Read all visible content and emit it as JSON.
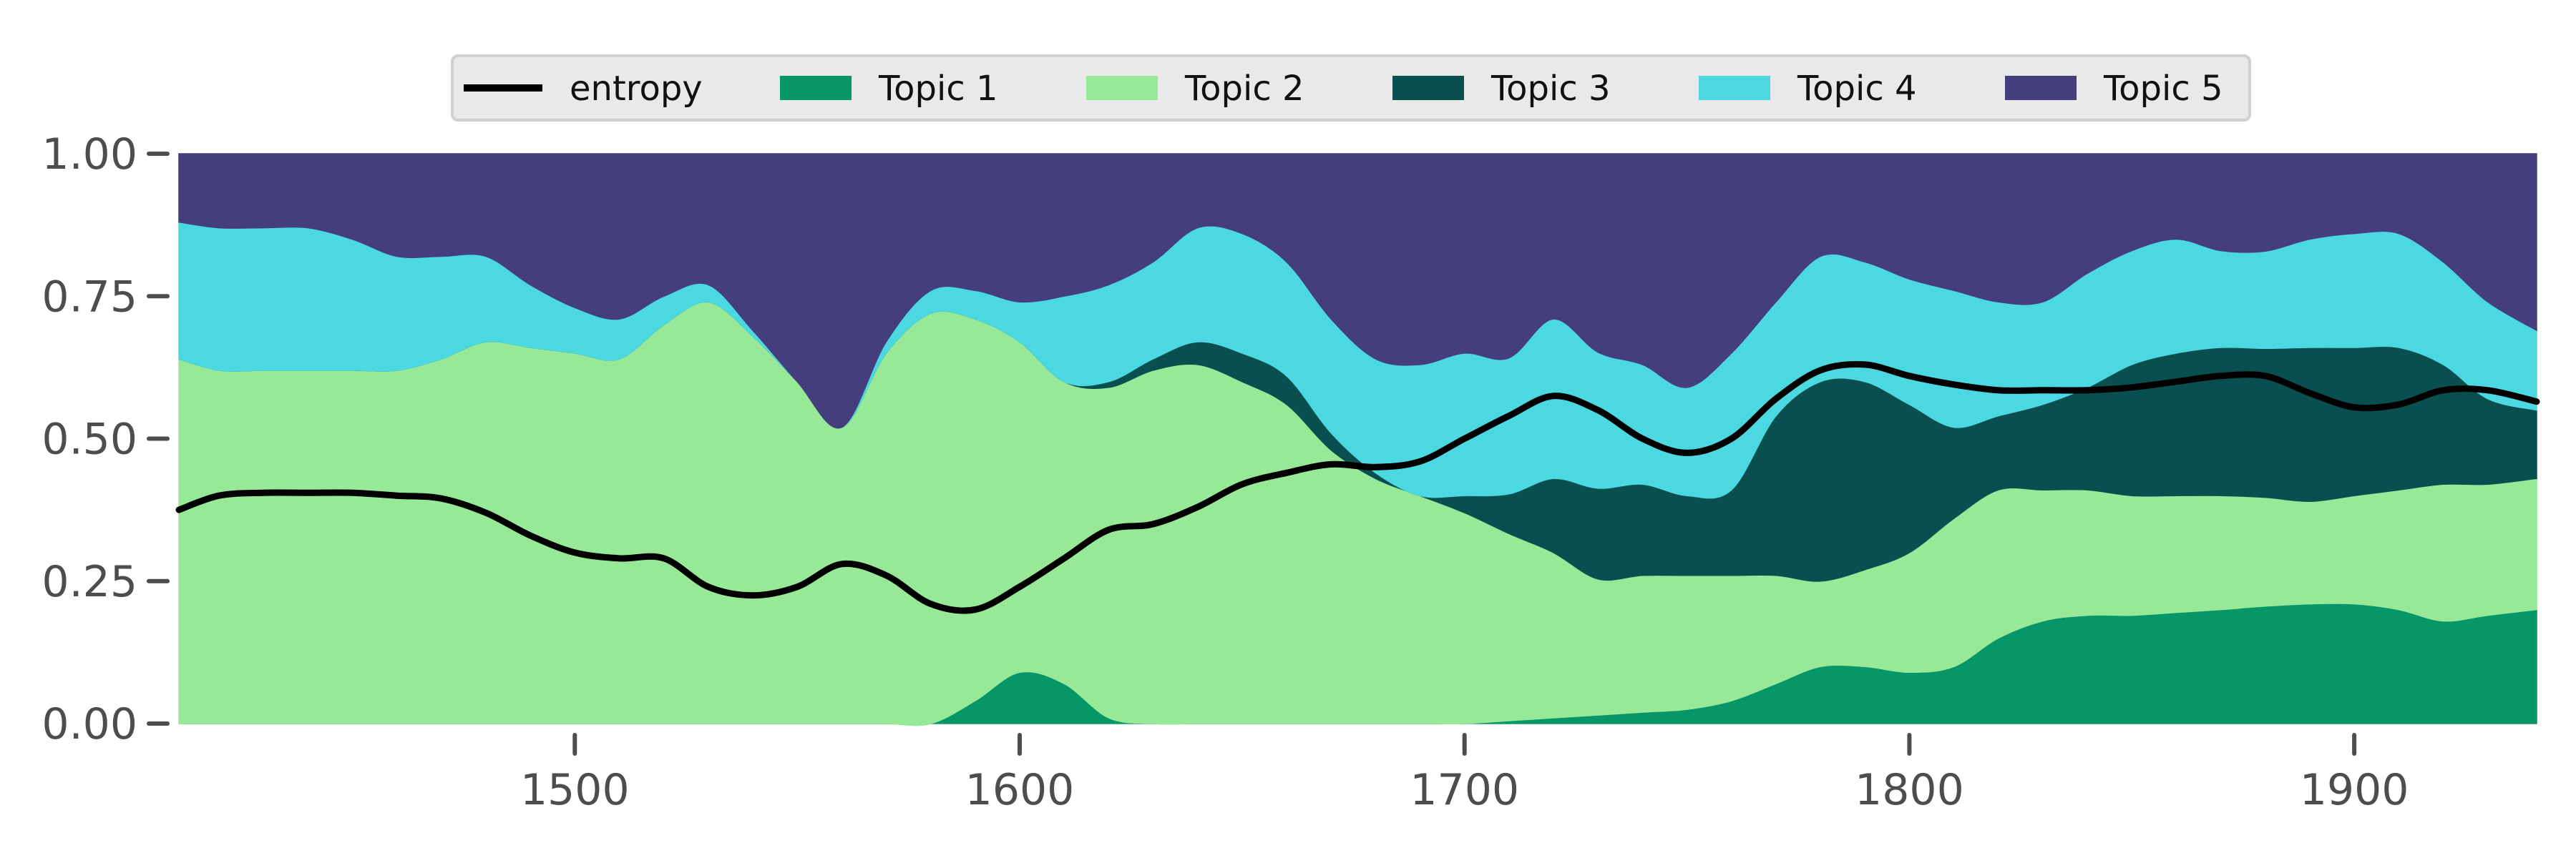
{
  "chart_data": {
    "type": "area",
    "stacked": true,
    "normalized": true,
    "title": "",
    "xlabel": "",
    "ylabel": "",
    "xlim": [
      1411,
      1941
    ],
    "ylim": [
      0,
      1
    ],
    "x_ticks": [
      1500,
      1600,
      1700,
      1800,
      1900
    ],
    "x_tick_labels": [
      "1500",
      "1600",
      "1700",
      "1800",
      "1900"
    ],
    "y_ticks": [
      0,
      0.25,
      0.5,
      0.75,
      1
    ],
    "y_tick_labels": [
      "0.00",
      "0.25",
      "0.50",
      "0.75",
      "1.00"
    ],
    "grid": false,
    "legend_position": "top-center",
    "legend": [
      "entropy",
      "Topic 1",
      "Topic 2",
      "Topic 3",
      "Topic 4",
      "Topic 5"
    ],
    "x": [
      1411,
      1420,
      1430,
      1440,
      1450,
      1460,
      1470,
      1480,
      1490,
      1500,
      1510,
      1520,
      1530,
      1540,
      1550,
      1560,
      1570,
      1580,
      1590,
      1600,
      1610,
      1620,
      1630,
      1640,
      1650,
      1660,
      1670,
      1680,
      1690,
      1700,
      1710,
      1720,
      1730,
      1740,
      1750,
      1760,
      1770,
      1780,
      1790,
      1800,
      1810,
      1820,
      1830,
      1840,
      1850,
      1860,
      1870,
      1880,
      1890,
      1900,
      1910,
      1920,
      1930,
      1941
    ],
    "series": [
      {
        "name": "Topic 1",
        "color": "#069668",
        "values": [
          0,
          0,
          0,
          0,
          0,
          0,
          0,
          0,
          0,
          0,
          0,
          0,
          0,
          0,
          0,
          0,
          0,
          0,
          0.04,
          0.09,
          0.07,
          0.01,
          0,
          0,
          0,
          0,
          0,
          0,
          0,
          0,
          0.005,
          0.01,
          0.015,
          0.02,
          0.025,
          0.04,
          0.07,
          0.1,
          0.1,
          0.09,
          0.1,
          0.15,
          0.18,
          0.19,
          0.19,
          0.195,
          0.2,
          0.205,
          0.21,
          0.21,
          0.2,
          0.18,
          0.19,
          0.2
        ]
      },
      {
        "name": "Topic 2",
        "color": "#97e897",
        "values": [
          0.64,
          0.62,
          0.62,
          0.62,
          0.62,
          0.62,
          0.64,
          0.67,
          0.66,
          0.65,
          0.64,
          0.7,
          0.74,
          0.68,
          0.6,
          0.52,
          0.65,
          0.72,
          0.67,
          0.58,
          0.53,
          0.58,
          0.62,
          0.63,
          0.6,
          0.56,
          0.48,
          0.43,
          0.4,
          0.37,
          0.33,
          0.29,
          0.24,
          0.24,
          0.235,
          0.22,
          0.19,
          0.15,
          0.17,
          0.21,
          0.26,
          0.26,
          0.23,
          0.22,
          0.21,
          0.205,
          0.2,
          0.19,
          0.18,
          0.19,
          0.21,
          0.24,
          0.23,
          0.23
        ]
      },
      {
        "name": "Topic 3",
        "color": "#0a4f50",
        "values": [
          0,
          0,
          0,
          0,
          0,
          0,
          0,
          0,
          0,
          0,
          0,
          0,
          0,
          0,
          0,
          0,
          0,
          0,
          0,
          0,
          0,
          0.01,
          0.02,
          0.04,
          0.05,
          0.05,
          0.03,
          0.01,
          0,
          0.03,
          0.07,
          0.13,
          0.16,
          0.16,
          0.14,
          0.15,
          0.28,
          0.35,
          0.33,
          0.26,
          0.16,
          0.13,
          0.15,
          0.18,
          0.23,
          0.25,
          0.26,
          0.26,
          0.27,
          0.26,
          0.25,
          0.21,
          0.15,
          0.12
        ]
      },
      {
        "name": "Topic 4",
        "color": "#4bd8e1",
        "values": [
          0.24,
          0.25,
          0.25,
          0.25,
          0.23,
          0.2,
          0.18,
          0.15,
          0.11,
          0.08,
          0.07,
          0.05,
          0.03,
          0.01,
          0,
          0,
          0.02,
          0.04,
          0.05,
          0.07,
          0.15,
          0.17,
          0.17,
          0.2,
          0.21,
          0.2,
          0.2,
          0.2,
          0.23,
          0.25,
          0.24,
          0.28,
          0.24,
          0.21,
          0.19,
          0.24,
          0.2,
          0.22,
          0.21,
          0.22,
          0.24,
          0.2,
          0.18,
          0.2,
          0.2,
          0.2,
          0.17,
          0.17,
          0.19,
          0.2,
          0.2,
          0.18,
          0.17,
          0.14
        ]
      },
      {
        "name": "Topic 5",
        "color": "#453e7c",
        "values": [
          0.12,
          0.13,
          0.13,
          0.13,
          0.15,
          0.18,
          0.18,
          0.18,
          0.23,
          0.27,
          0.29,
          0.25,
          0.23,
          0.31,
          0.4,
          0.48,
          0.33,
          0.24,
          0.24,
          0.26,
          0.25,
          0.23,
          0.19,
          0.13,
          0.14,
          0.19,
          0.29,
          0.36,
          0.37,
          0.35,
          0.36,
          0.29,
          0.35,
          0.37,
          0.41,
          0.35,
          0.26,
          0.18,
          0.19,
          0.22,
          0.24,
          0.26,
          0.26,
          0.21,
          0.17,
          0.15,
          0.17,
          0.17,
          0.15,
          0.14,
          0.14,
          0.19,
          0.26,
          0.31
        ]
      }
    ],
    "line": {
      "name": "entropy",
      "color": "#000000",
      "values": [
        0.375,
        0.4,
        0.405,
        0.405,
        0.405,
        0.4,
        0.395,
        0.37,
        0.33,
        0.3,
        0.29,
        0.29,
        0.24,
        0.225,
        0.24,
        0.28,
        0.26,
        0.21,
        0.2,
        0.24,
        0.29,
        0.34,
        0.35,
        0.38,
        0.42,
        0.44,
        0.455,
        0.45,
        0.46,
        0.5,
        0.54,
        0.575,
        0.55,
        0.5,
        0.475,
        0.5,
        0.57,
        0.62,
        0.63,
        0.61,
        0.595,
        0.585,
        0.585,
        0.585,
        0.59,
        0.6,
        0.61,
        0.61,
        0.58,
        0.555,
        0.56,
        0.585,
        0.585,
        0.565
      ]
    }
  }
}
